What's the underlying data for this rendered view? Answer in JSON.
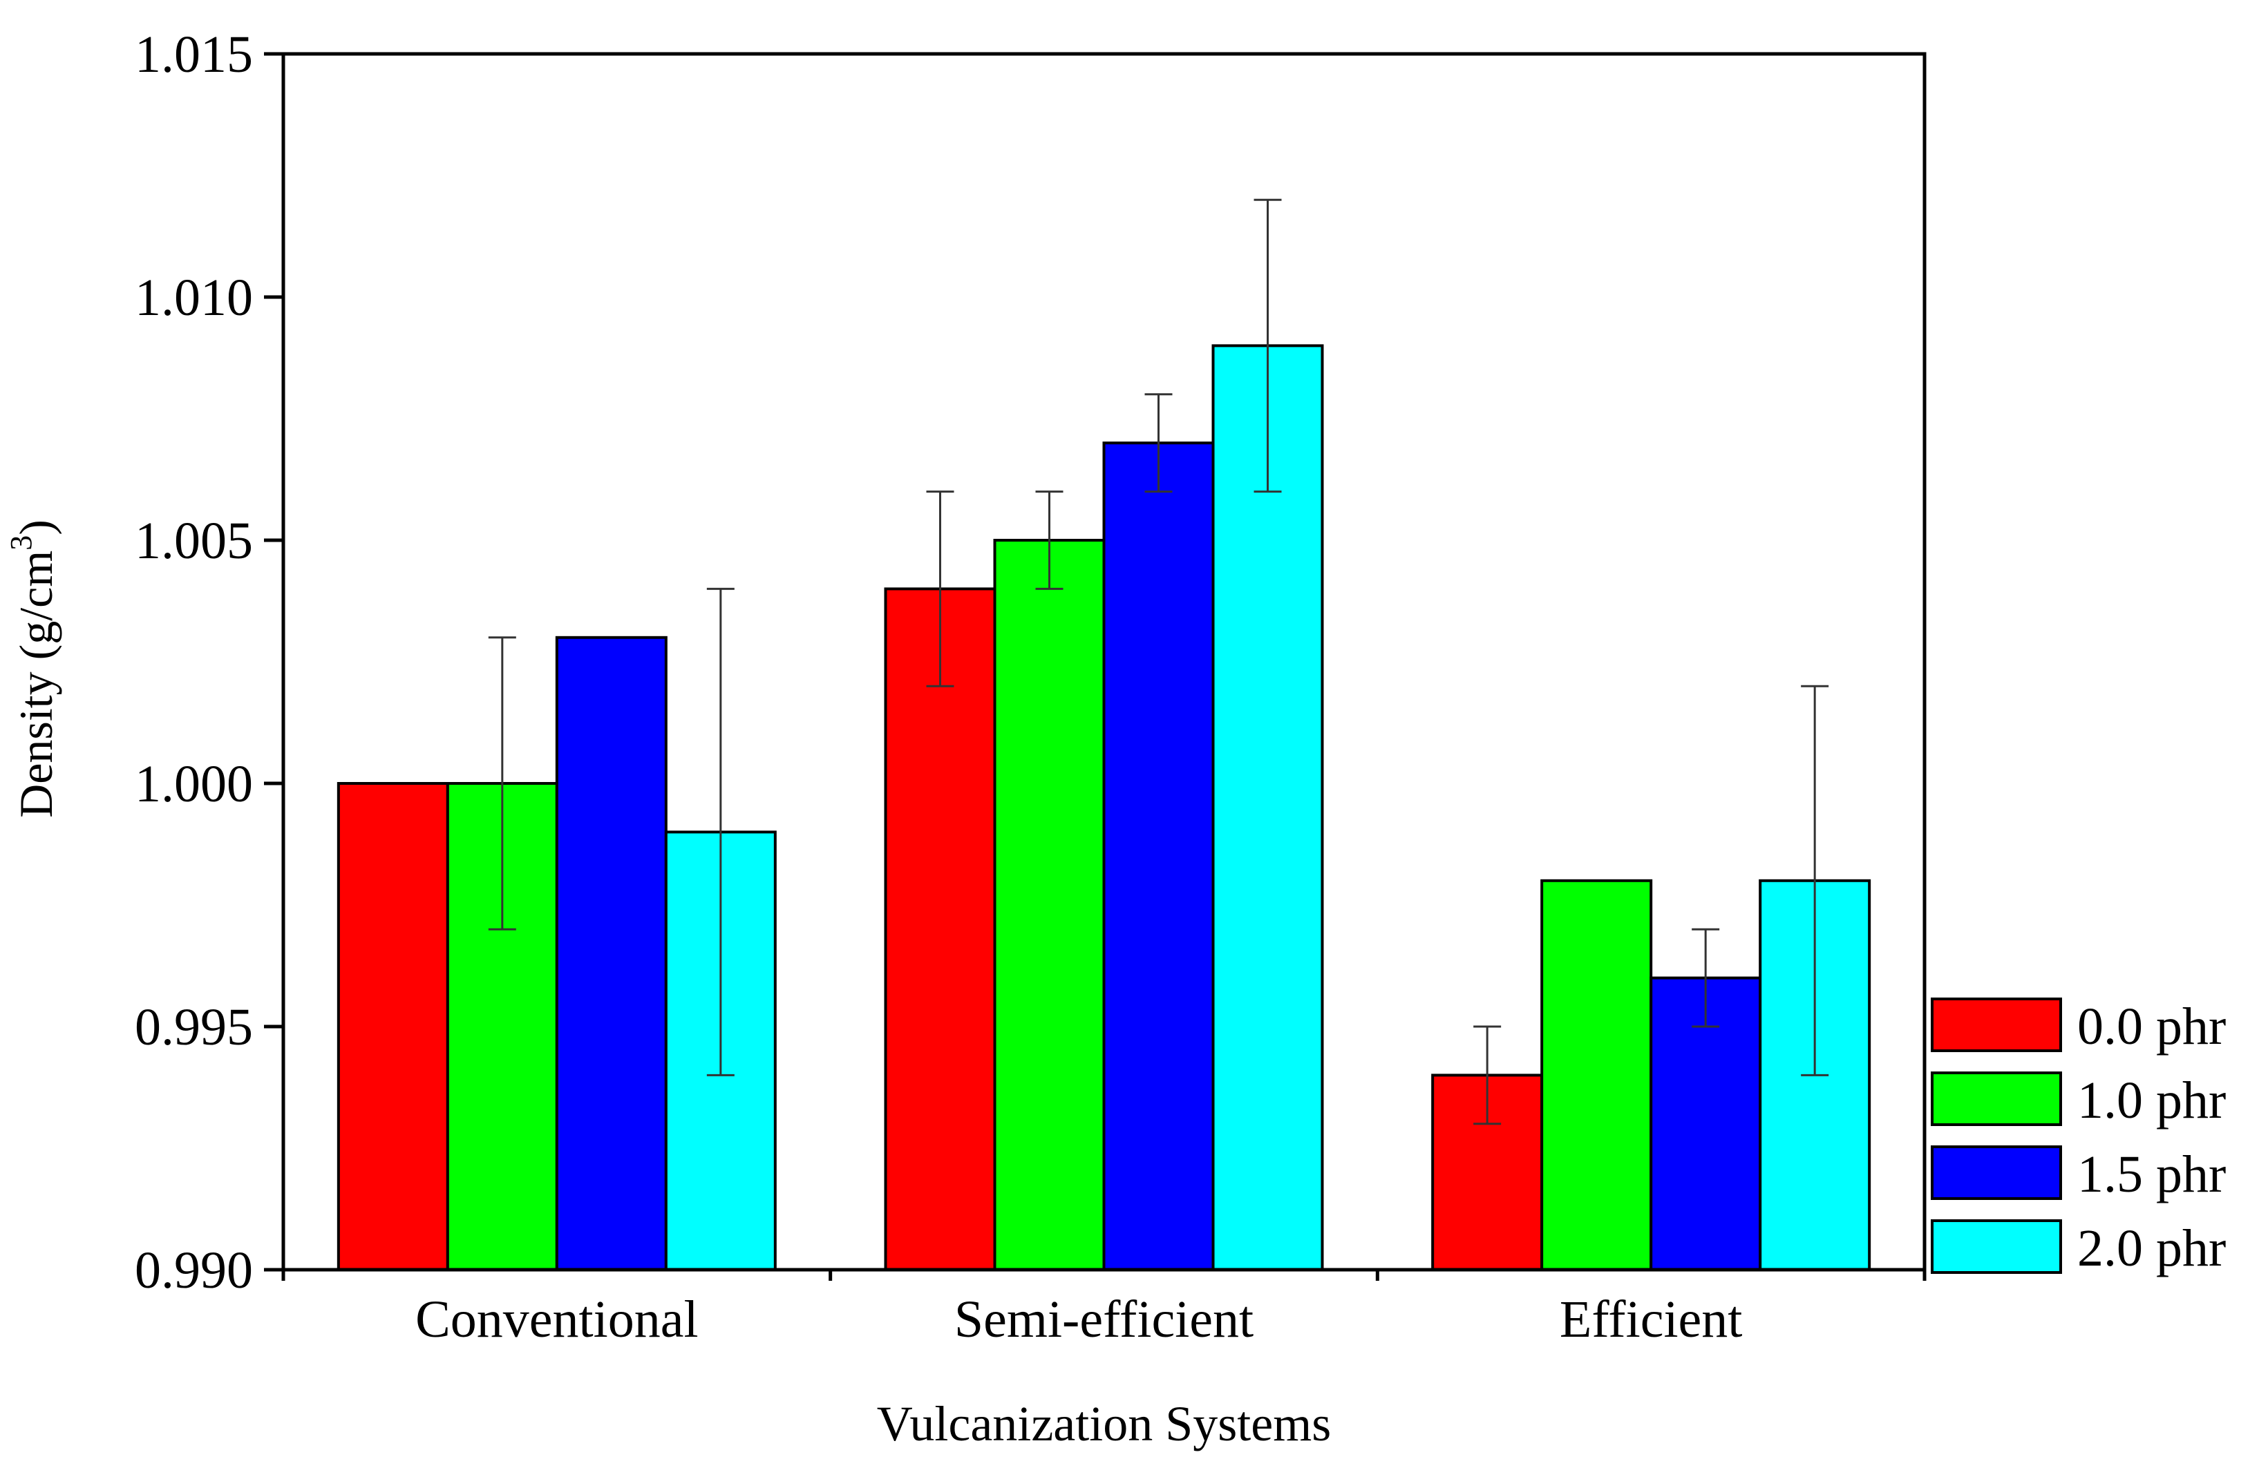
{
  "chart_data": {
    "type": "bar",
    "title": "",
    "xlabel": "Vulcanization Systems",
    "ylabel": "Density (g/cm",
    "ylabel_superscript": "3",
    "ylabel_suffix": ")",
    "ylim": [
      0.99,
      1.015
    ],
    "yticks": [
      "0.990",
      "0.995",
      "1.000",
      "1.005",
      "1.010",
      "1.015"
    ],
    "ytick_values": [
      0.99,
      0.995,
      1.0,
      1.005,
      1.01,
      1.015
    ],
    "categories": [
      "Conventional",
      "Semi-efficient",
      "Efficient"
    ],
    "series": [
      {
        "name": "0.0 phr",
        "color": "#ff0000",
        "values": [
          1.0,
          1.004,
          0.994
        ],
        "errors": [
          null,
          0.002,
          0.001
        ]
      },
      {
        "name": "1.0 phr",
        "color": "#00ff00",
        "values": [
          1.0,
          1.005,
          0.998
        ],
        "errors": [
          0.003,
          0.001,
          null
        ]
      },
      {
        "name": "1.5 phr",
        "color": "#0000ff",
        "values": [
          1.003,
          1.007,
          0.996
        ],
        "errors": [
          null,
          0.001,
          0.001
        ]
      },
      {
        "name": "2.0 phr",
        "color": "#00ffff",
        "values": [
          0.999,
          1.009,
          0.998
        ],
        "errors": [
          0.005,
          0.003,
          0.004
        ]
      }
    ],
    "legend_position": "bottom-right, outside plot"
  }
}
